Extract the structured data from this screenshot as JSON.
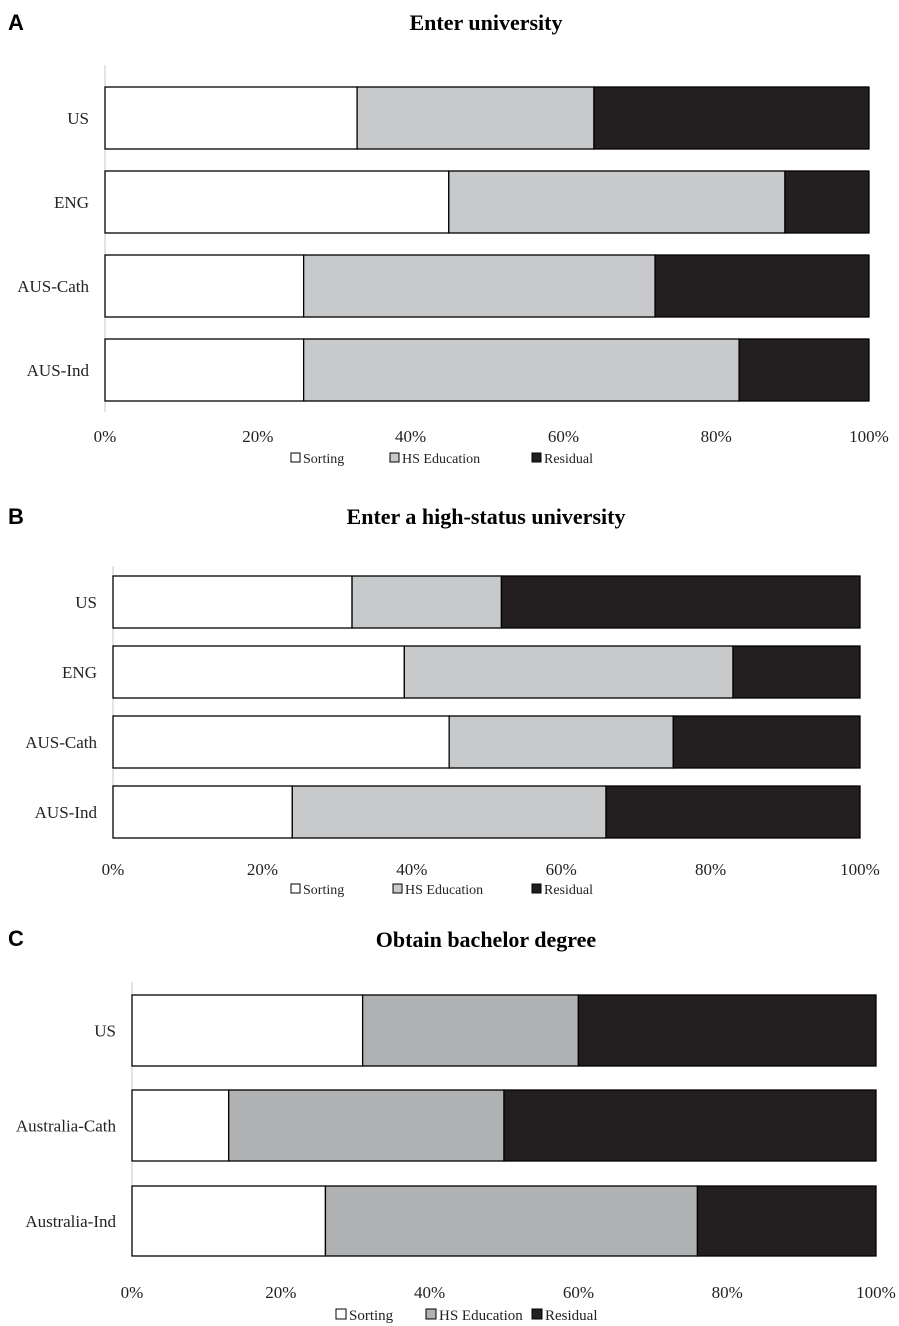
{
  "chart_data": [
    {
      "type": "bar",
      "orientation": "horizontal",
      "stacked": true,
      "panel": "A",
      "title": "Enter university",
      "categories": [
        "US",
        "ENG",
        "AUS-Cath",
        "AUS-Ind"
      ],
      "series": [
        {
          "name": "Sorting",
          "values": [
            33,
            45,
            26,
            26
          ]
        },
        {
          "name": "HS Education",
          "values": [
            31,
            44,
            46,
            57
          ]
        },
        {
          "name": "Residual",
          "values": [
            36,
            11,
            28,
            17
          ]
        }
      ],
      "xlim": [
        0,
        100
      ],
      "xticks": [
        "0%",
        "20%",
        "40%",
        "60%",
        "80%",
        "100%"
      ],
      "legend": "bottom",
      "grid": false
    },
    {
      "type": "bar",
      "orientation": "horizontal",
      "stacked": true,
      "panel": "B",
      "title": "Enter a high-status university",
      "categories": [
        "US",
        "ENG",
        "AUS-Cath",
        "AUS-Ind"
      ],
      "series": [
        {
          "name": "Sorting",
          "values": [
            32,
            39,
            45,
            24
          ]
        },
        {
          "name": "HS Education",
          "values": [
            20,
            44,
            30,
            42
          ]
        },
        {
          "name": "Residual",
          "values": [
            48,
            17,
            25,
            34
          ]
        }
      ],
      "xlim": [
        0,
        100
      ],
      "xticks": [
        "0%",
        "20%",
        "40%",
        "60%",
        "80%",
        "100%"
      ],
      "legend": "bottom",
      "grid": false
    },
    {
      "type": "bar",
      "orientation": "horizontal",
      "stacked": true,
      "panel": "C",
      "title": "Obtain bachelor degree",
      "categories": [
        "US",
        "Australia-Cath",
        "Australia-Ind"
      ],
      "series": [
        {
          "name": "Sorting",
          "values": [
            31,
            13,
            26
          ]
        },
        {
          "name": "HS Education",
          "values": [
            29,
            37,
            50
          ]
        },
        {
          "name": "Residual",
          "values": [
            40,
            50,
            24
          ]
        }
      ],
      "xlim": [
        0,
        100
      ],
      "xticks": [
        "0%",
        "20%",
        "40%",
        "60%",
        "80%",
        "100%"
      ],
      "legend": "bottom",
      "grid": false
    }
  ]
}
